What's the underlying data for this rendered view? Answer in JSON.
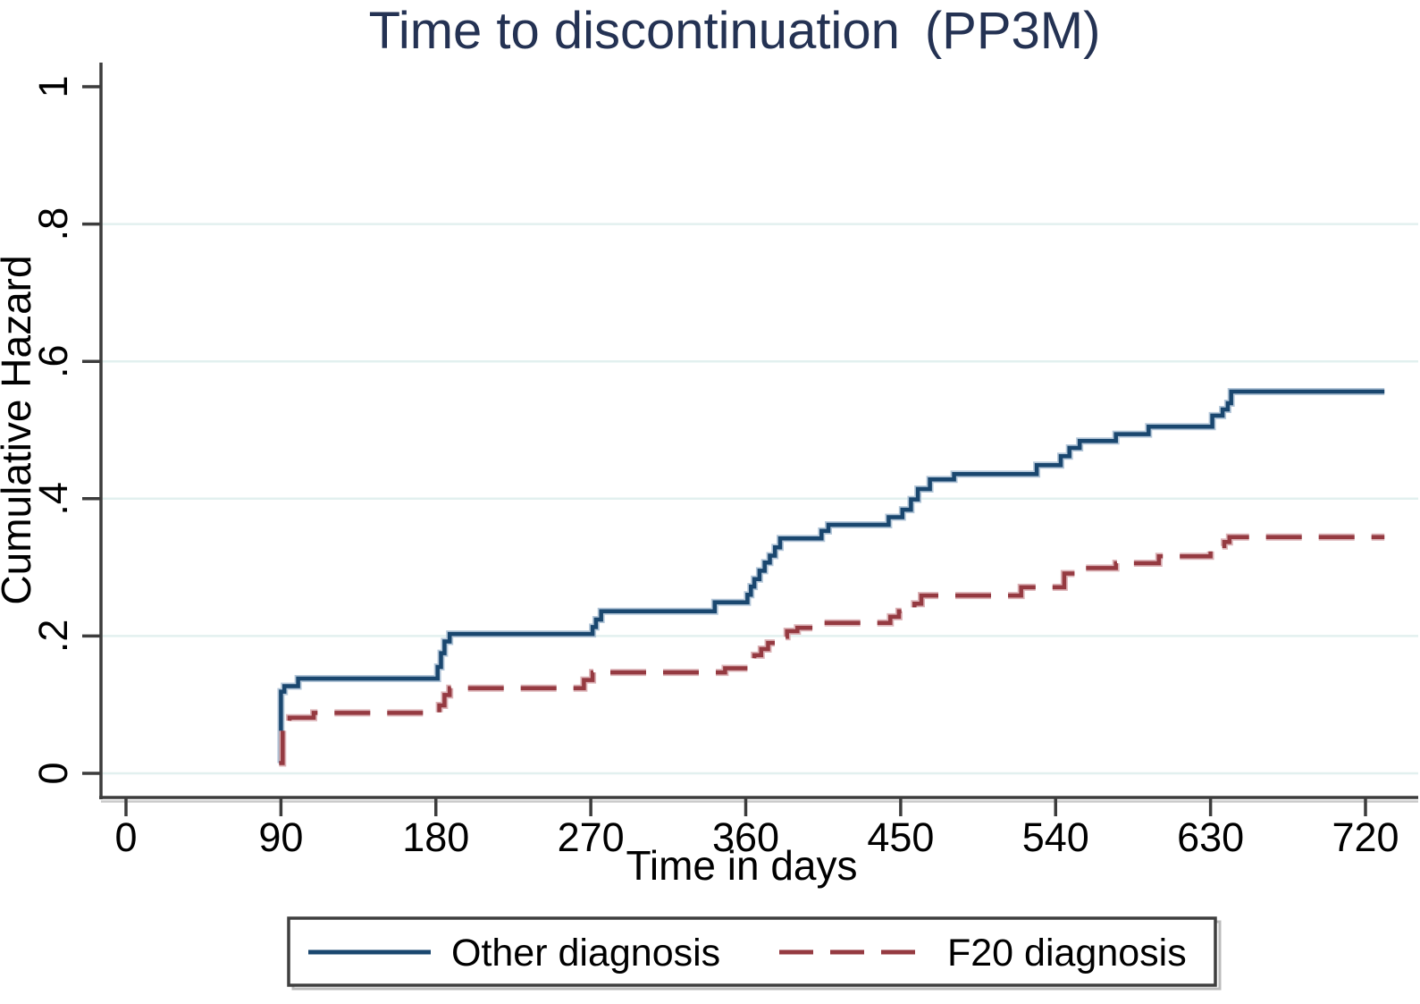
{
  "title": {
    "main": "Time to discontinuation",
    "suffix": "(PP3M)"
  },
  "colors": {
    "title_navy": "#243253",
    "axis_line": "#3c3c3c",
    "gridline": "#e2f0ef",
    "series_other": "#1a476f",
    "series_f20": "#953a41",
    "legend_border": "#3f3f3f",
    "background": "#ffffff"
  },
  "legend": {
    "items": [
      {
        "label": "Other diagnosis",
        "line_style": "solid",
        "color": "#1a476f"
      },
      {
        "label": "F20 diagnosis",
        "line_style": "dashed",
        "color": "#953a41"
      }
    ]
  },
  "chart_data": {
    "type": "line",
    "subtype": "step-cumulative-hazard",
    "title": "Time to discontinuation (PP3M)",
    "xlabel": "Time in days",
    "ylabel": "Cumulative Hazard",
    "xlim": [
      0,
      731
    ],
    "ylim": [
      0,
      1
    ],
    "xticks": [
      0,
      90,
      180,
      270,
      360,
      450,
      540,
      630,
      720
    ],
    "yticks": [
      0,
      0.2,
      0.4,
      0.6,
      0.8,
      1
    ],
    "ytick_labels": [
      "0",
      ".2",
      ".4",
      ".6",
      ".8",
      "1"
    ],
    "grid": "horizontal-at-yticks-below-1",
    "legend_position": "bottom-center-boxed",
    "curve_start_day": 89,
    "curve_end_day": 729,
    "series": [
      {
        "name": "Other diagnosis",
        "style": "solid",
        "color": "#1a476f",
        "halo": "#b3c6d8",
        "points": [
          [
            89,
            0.015
          ],
          [
            90,
            0.119
          ],
          [
            92,
            0.127
          ],
          [
            100,
            0.138
          ],
          [
            181,
            0.155
          ],
          [
            183,
            0.175
          ],
          [
            185,
            0.192
          ],
          [
            188,
            0.203
          ],
          [
            271,
            0.213
          ],
          [
            273,
            0.224
          ],
          [
            276,
            0.236
          ],
          [
            342,
            0.249
          ],
          [
            361,
            0.26
          ],
          [
            363,
            0.272
          ],
          [
            365,
            0.283
          ],
          [
            368,
            0.295
          ],
          [
            371,
            0.307
          ],
          [
            374,
            0.317
          ],
          [
            377,
            0.329
          ],
          [
            380,
            0.342
          ],
          [
            404,
            0.353
          ],
          [
            408,
            0.362
          ],
          [
            443,
            0.373
          ],
          [
            451,
            0.384
          ],
          [
            456,
            0.399
          ],
          [
            460,
            0.414
          ],
          [
            467,
            0.428
          ],
          [
            481,
            0.436
          ],
          [
            529,
            0.449
          ],
          [
            543,
            0.462
          ],
          [
            548,
            0.474
          ],
          [
            554,
            0.484
          ],
          [
            575,
            0.494
          ],
          [
            594,
            0.505
          ],
          [
            631,
            0.521
          ],
          [
            637,
            0.53
          ],
          [
            640,
            0.539
          ],
          [
            642,
            0.556
          ],
          [
            729,
            0.556
          ]
        ]
      },
      {
        "name": "F20 diagnosis",
        "style": "dashed",
        "color": "#953a41",
        "halo": "#dcb3b7",
        "points": [
          [
            89,
            0.015
          ],
          [
            91,
            0.068
          ],
          [
            95,
            0.081
          ],
          [
            109,
            0.088
          ],
          [
            182,
            0.099
          ],
          [
            185,
            0.114
          ],
          [
            188,
            0.124
          ],
          [
            266,
            0.136
          ],
          [
            271,
            0.147
          ],
          [
            348,
            0.153
          ],
          [
            361,
            0.162
          ],
          [
            365,
            0.172
          ],
          [
            369,
            0.181
          ],
          [
            373,
            0.19
          ],
          [
            377,
            0.199
          ],
          [
            384,
            0.207
          ],
          [
            390,
            0.212
          ],
          [
            404,
            0.219
          ],
          [
            444,
            0.228
          ],
          [
            449,
            0.236
          ],
          [
            458,
            0.247
          ],
          [
            462,
            0.259
          ],
          [
            520,
            0.271
          ],
          [
            545,
            0.291
          ],
          [
            554,
            0.299
          ],
          [
            575,
            0.306
          ],
          [
            600,
            0.316
          ],
          [
            630,
            0.326
          ],
          [
            634,
            0.331
          ],
          [
            638,
            0.337
          ],
          [
            641,
            0.344
          ],
          [
            729,
            0.344
          ]
        ]
      }
    ]
  }
}
